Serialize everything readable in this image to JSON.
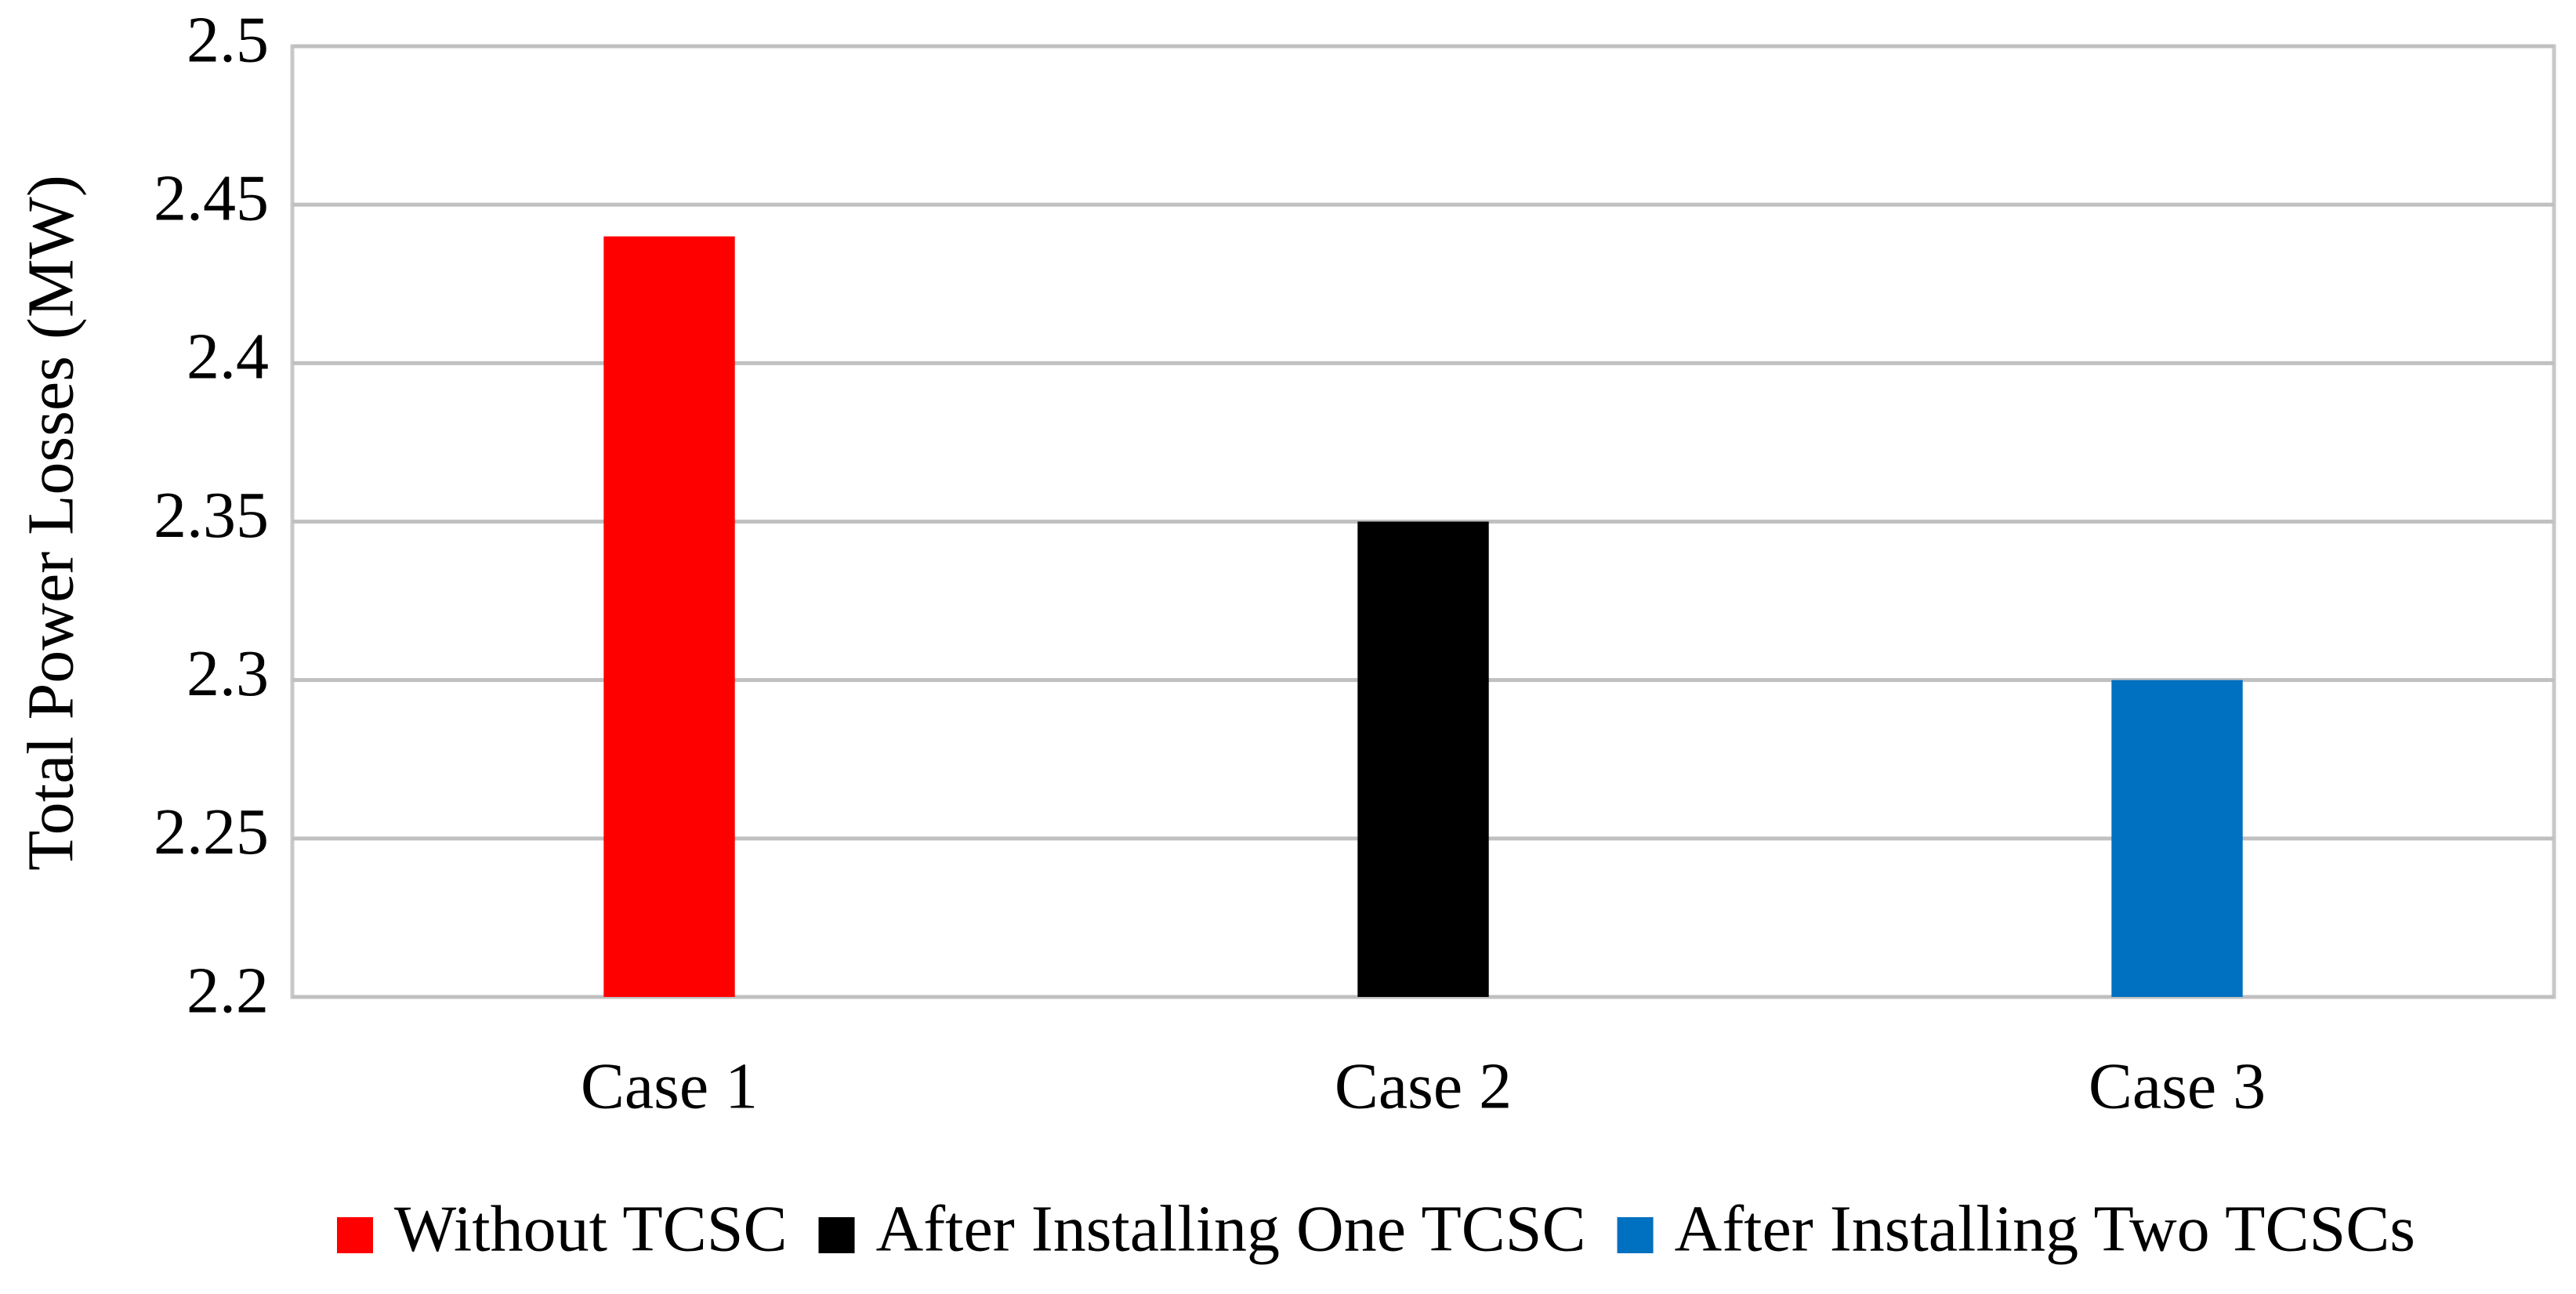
{
  "chart_data": {
    "type": "bar",
    "y_label": "Total Power Losses (MW)",
    "categories": [
      "Case 1",
      "Case 2",
      "Case 3"
    ],
    "series": [
      {
        "name": "Without TCSC",
        "color": "#ff0000",
        "values": [
          2.44,
          null,
          null
        ]
      },
      {
        "name": "After Installing One TCSC",
        "color": "#000000",
        "values": [
          null,
          2.35,
          null
        ]
      },
      {
        "name": "After Installing Two TCSCs",
        "color": "#0070c0",
        "values": [
          null,
          null,
          2.3
        ]
      }
    ],
    "ylim": [
      2.2,
      2.5
    ],
    "yticks": [
      2.2,
      2.25,
      2.3,
      2.35,
      2.4,
      2.45,
      2.5
    ],
    "grid": true,
    "legend": "bottom"
  }
}
